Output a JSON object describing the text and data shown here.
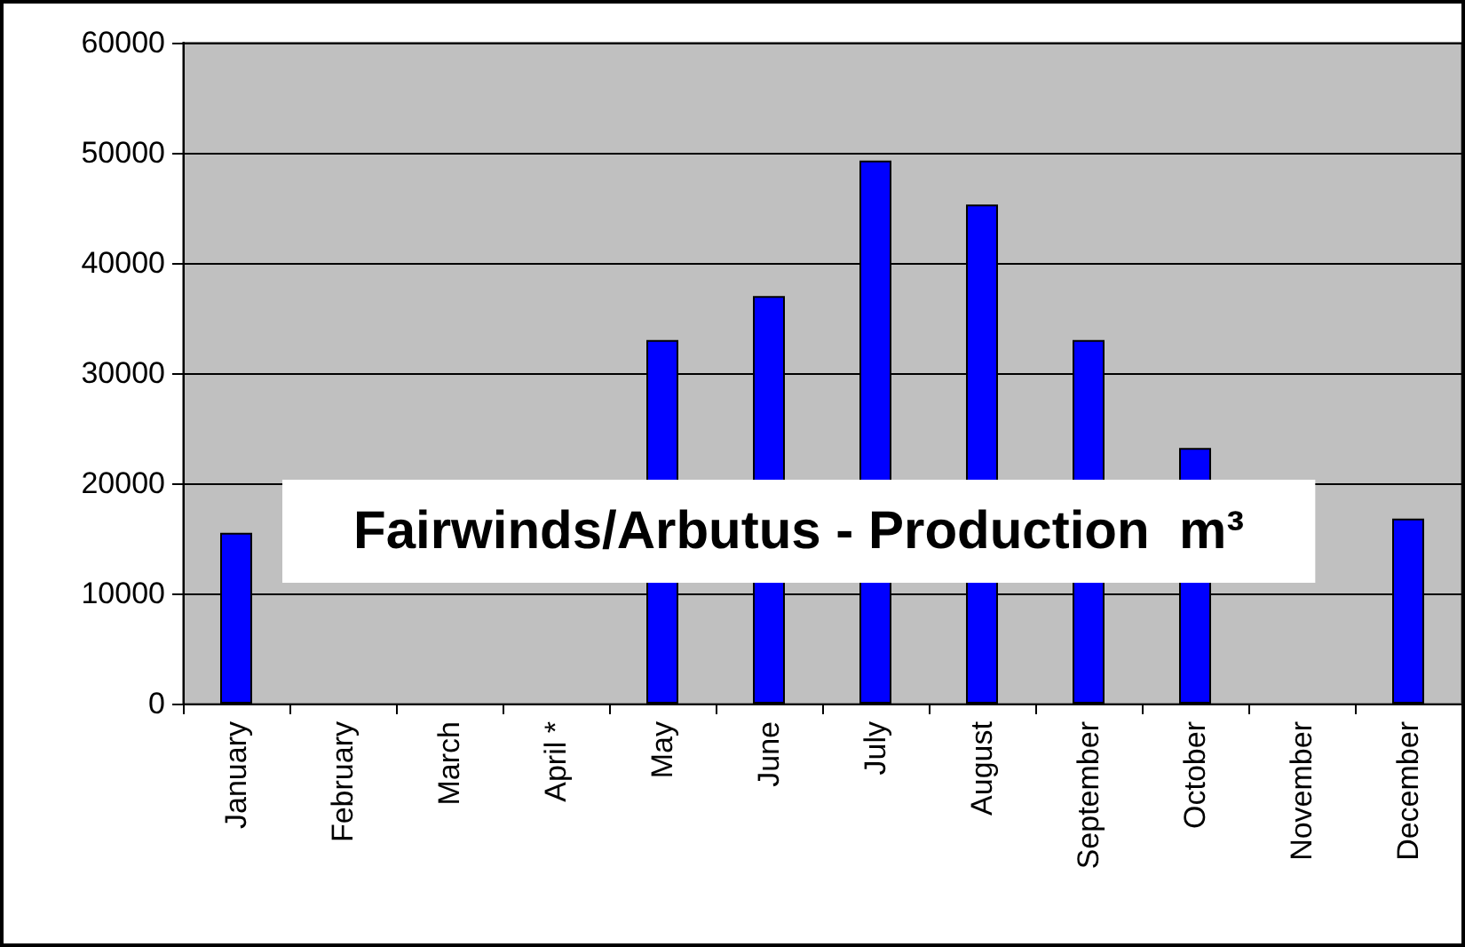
{
  "chart_data": {
    "type": "bar",
    "title": "Fairwinds/Arbutus - Production  m³",
    "categories": [
      "January",
      "February",
      "March",
      "April *",
      "May",
      "June",
      "July",
      "August",
      "September",
      "October",
      "November",
      "December"
    ],
    "values": [
      15500,
      null,
      null,
      null,
      33000,
      37000,
      49300,
      45300,
      33000,
      23200,
      null,
      16800
    ],
    "color": "#0000ff",
    "ylim": [
      0,
      60000
    ],
    "yticks": [
      0,
      10000,
      20000,
      30000,
      40000,
      50000,
      60000
    ],
    "grid": "y"
  }
}
